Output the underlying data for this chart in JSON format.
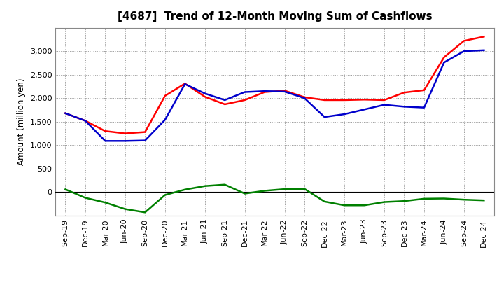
{
  "title": "[4687]  Trend of 12-Month Moving Sum of Cashflows",
  "ylabel": "Amount (million yen)",
  "x_labels": [
    "Sep-19",
    "Dec-19",
    "Mar-20",
    "Jun-20",
    "Sep-20",
    "Dec-20",
    "Mar-21",
    "Jun-21",
    "Sep-21",
    "Dec-21",
    "Mar-22",
    "Jun-22",
    "Sep-22",
    "Dec-22",
    "Mar-23",
    "Jun-23",
    "Sep-23",
    "Dec-23",
    "Mar-24",
    "Jun-24",
    "Sep-24",
    "Dec-24"
  ],
  "operating": [
    1680,
    1520,
    1300,
    1250,
    1280,
    2050,
    2310,
    2030,
    1870,
    1960,
    2130,
    2160,
    2020,
    1960,
    1960,
    1970,
    1960,
    2120,
    2170,
    2870,
    3220,
    3310
  ],
  "investing": [
    60,
    -120,
    -220,
    -360,
    -430,
    -60,
    55,
    130,
    160,
    -30,
    30,
    65,
    70,
    -200,
    -280,
    -280,
    -210,
    -190,
    -140,
    -135,
    -160,
    -175
  ],
  "free": [
    1680,
    1520,
    1090,
    1090,
    1100,
    1540,
    2300,
    2100,
    1960,
    2130,
    2150,
    2140,
    2000,
    1600,
    1660,
    1760,
    1860,
    1820,
    1800,
    2760,
    3000,
    3020
  ],
  "operating_color": "#ff0000",
  "investing_color": "#008000",
  "free_color": "#0000cc",
  "ylim_min": -500,
  "ylim_max": 3500,
  "yticks": [
    0,
    500,
    1000,
    1500,
    2000,
    2500,
    3000
  ],
  "background_color": "#ffffff",
  "grid_color": "#999999"
}
